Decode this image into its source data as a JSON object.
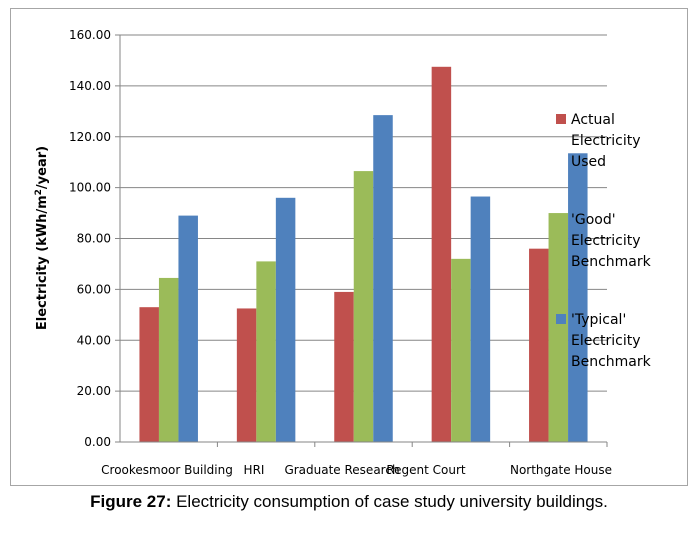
{
  "caption": {
    "label": "Figure 27:",
    "text": " Electricity consumption of case study university buildings."
  },
  "chart_data": {
    "type": "bar",
    "ylabel_main": "Electricity (kWh/m",
    "ylabel_sup": "2",
    "ylabel_tail": "/year)",
    "ylim": [
      0,
      160
    ],
    "yticks": [
      "0.00",
      "20.00",
      "40.00",
      "60.00",
      "80.00",
      "100.00",
      "120.00",
      "140.00",
      "160.00"
    ],
    "ytick_values": [
      0,
      20,
      40,
      60,
      80,
      100,
      120,
      140,
      160
    ],
    "grid": true,
    "legend_position": "right",
    "categories": [
      "Crookesmoor Building",
      "HRI",
      "Graduate Research",
      "Regent Court",
      "Northgate House"
    ],
    "series": [
      {
        "name": [
          "Actual",
          "Electricity",
          "Used"
        ],
        "color": "#c0504d",
        "values": [
          53,
          52.5,
          59,
          147.5,
          76
        ]
      },
      {
        "name": [
          "'Good'",
          "Electricity",
          "Benchmark"
        ],
        "color": "#9bbb59",
        "values": [
          64.5,
          71,
          106.5,
          72,
          90
        ]
      },
      {
        "name": [
          "'Typical'",
          "Electricity",
          "Benchmark"
        ],
        "color": "#4f81bd",
        "values": [
          89,
          96,
          128.5,
          96.5,
          113.5
        ]
      }
    ]
  }
}
